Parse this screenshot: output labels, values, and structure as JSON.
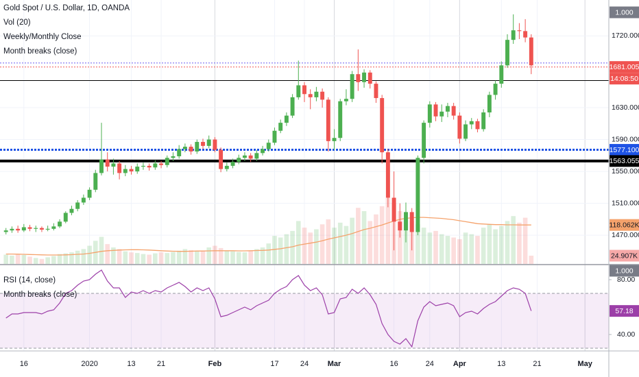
{
  "chart_data": [
    {
      "type": "candlestick",
      "title": "Gold Spot / U.S. Dollar, 1D, OANDA",
      "indicators": [
        "Vol (20)",
        "Weekly/Monthly Close",
        "Month breaks (close)"
      ],
      "categories": [
        null,
        null,
        null,
        "16",
        null,
        null,
        null,
        null,
        null,
        null,
        null,
        null,
        null,
        null,
        "2020",
        null,
        null,
        null,
        null,
        null,
        null,
        "13",
        null,
        null,
        null,
        null,
        "21",
        null,
        null,
        null,
        null,
        null,
        null,
        null,
        null,
        "Feb",
        null,
        null,
        null,
        null,
        null,
        null,
        null,
        null,
        null,
        "17",
        null,
        null,
        null,
        null,
        "24",
        null,
        null,
        null,
        null,
        "Mar",
        null,
        null,
        null,
        null,
        null,
        null,
        null,
        null,
        null,
        "16",
        null,
        null,
        null,
        null,
        null,
        "24",
        null,
        null,
        null,
        null,
        "Apr",
        null,
        null,
        null,
        null,
        null,
        null,
        "13",
        null,
        null,
        null,
        null,
        null,
        "21",
        null,
        null,
        null,
        null,
        null,
        null,
        null,
        "May",
        null,
        null,
        null
      ],
      "open": [
        1474,
        1476,
        1478,
        1476,
        1480,
        1478,
        1479,
        1477,
        1478,
        1481,
        1487,
        1498,
        1503,
        1511,
        1517,
        1527,
        1548,
        1565,
        1556,
        1560,
        1548,
        1553,
        1550,
        1556,
        1557,
        1555,
        1560,
        1558,
        1567,
        1569,
        1578,
        1581,
        1575,
        1587,
        1582,
        1590,
        1577,
        1553,
        1557,
        1562,
        1567,
        1570,
        1566,
        1573,
        1578,
        1586,
        1601,
        1611,
        1620,
        1643,
        1658,
        1647,
        1643,
        1650,
        1640,
        1588,
        1592,
        1638,
        1641,
        1672,
        1662,
        1674,
        1660,
        1642,
        1574,
        1517,
        1487,
        1476,
        1499,
        1474,
        1567,
        1611,
        1634,
        1619,
        1625,
        1632,
        1620,
        1591,
        1609,
        1613,
        1603,
        1624,
        1646,
        1660,
        1683,
        1715,
        1727,
        1726,
        1718,
        null,
        null,
        null,
        null,
        null,
        null,
        null,
        null,
        null,
        null,
        null,
        null
      ],
      "high": [
        1479,
        1481,
        1482,
        1484,
        1483,
        1482,
        1481,
        1482,
        1485,
        1490,
        1500,
        1507,
        1514,
        1521,
        1530,
        1552,
        1611,
        1574,
        1566,
        1563,
        1558,
        1557,
        1560,
        1561,
        1560,
        1564,
        1563,
        1570,
        1574,
        1583,
        1585,
        1584,
        1590,
        1591,
        1595,
        1593,
        1580,
        1561,
        1566,
        1571,
        1574,
        1573,
        1577,
        1582,
        1590,
        1605,
        1615,
        1624,
        1647,
        1689,
        1662,
        1653,
        1656,
        1654,
        1643,
        1603,
        1641,
        1653,
        1676,
        1703,
        1678,
        1677,
        1663,
        1646,
        1578,
        1550,
        1510,
        1511,
        1504,
        1570,
        1614,
        1638,
        1637,
        1634,
        1636,
        1636,
        1624,
        1614,
        1617,
        1616,
        1628,
        1650,
        1664,
        1688,
        1722,
        1747,
        1736,
        1741,
        1722,
        null,
        null,
        null,
        null,
        null,
        null,
        null,
        null,
        null,
        null,
        null,
        null
      ],
      "low": [
        1471,
        1473,
        1473,
        1474,
        1475,
        1474,
        1474,
        1475,
        1476,
        1479,
        1485,
        1495,
        1500,
        1508,
        1514,
        1524,
        1545,
        1550,
        1546,
        1540,
        1544,
        1546,
        1547,
        1552,
        1551,
        1552,
        1554,
        1555,
        1563,
        1566,
        1574,
        1571,
        1572,
        1578,
        1579,
        1574,
        1549,
        1550,
        1554,
        1559,
        1563,
        1562,
        1563,
        1570,
        1575,
        1583,
        1598,
        1607,
        1617,
        1640,
        1637,
        1628,
        1638,
        1630,
        1575,
        1577,
        1588,
        1633,
        1637,
        1651,
        1655,
        1654,
        1636,
        1560,
        1505,
        1451,
        1467,
        1461,
        1451,
        1470,
        1560,
        1605,
        1613,
        1612,
        1618,
        1615,
        1585,
        1588,
        1603,
        1599,
        1600,
        1618,
        1640,
        1655,
        1680,
        1710,
        1716,
        1712,
        1672,
        null,
        null,
        null,
        null,
        null,
        null,
        null,
        null,
        null,
        null,
        null,
        null
      ],
      "close": [
        1476,
        1478,
        1476,
        1480,
        1478,
        1479,
        1477,
        1478,
        1481,
        1487,
        1498,
        1503,
        1511,
        1517,
        1527,
        1548,
        1565,
        1556,
        1560,
        1548,
        1553,
        1550,
        1556,
        1557,
        1555,
        1560,
        1558,
        1567,
        1569,
        1578,
        1581,
        1575,
        1587,
        1582,
        1590,
        1577,
        1553,
        1557,
        1562,
        1567,
        1570,
        1566,
        1573,
        1578,
        1586,
        1601,
        1611,
        1620,
        1643,
        1658,
        1647,
        1643,
        1650,
        1640,
        1588,
        1592,
        1638,
        1641,
        1672,
        1662,
        1674,
        1660,
        1642,
        1574,
        1517,
        1487,
        1476,
        1499,
        1474,
        1567,
        1611,
        1634,
        1619,
        1625,
        1632,
        1620,
        1591,
        1609,
        1613,
        1603,
        1624,
        1646,
        1660,
        1683,
        1715,
        1727,
        1726,
        1718,
        1683,
        null,
        null,
        null,
        null,
        null,
        null,
        null,
        null,
        null,
        null,
        null,
        null
      ],
      "volume": [
        28000,
        25000,
        30000,
        27000,
        22000,
        18000,
        15000,
        20000,
        24000,
        30000,
        32000,
        35000,
        40000,
        45000,
        55000,
        70000,
        82000,
        60000,
        50000,
        45000,
        38000,
        35000,
        33000,
        30000,
        28000,
        32000,
        35000,
        33000,
        36000,
        40000,
        45000,
        42000,
        38000,
        40000,
        50000,
        55000,
        48000,
        40000,
        38000,
        36000,
        35000,
        40000,
        45000,
        50000,
        62000,
        85000,
        80000,
        90000,
        100000,
        130000,
        110000,
        95000,
        105000,
        120000,
        135000,
        110000,
        125000,
        115000,
        140000,
        170000,
        160000,
        130000,
        150000,
        175000,
        200000,
        185000,
        160000,
        140000,
        130000,
        120000,
        110000,
        95000,
        100000,
        90000,
        85000,
        80000,
        75000,
        95000,
        90000,
        85000,
        110000,
        120000,
        105000,
        115000,
        130000,
        145000,
        125000,
        140000,
        24907,
        null,
        null,
        null,
        null,
        null,
        null,
        null,
        null,
        null,
        null,
        null,
        null
      ],
      "volume_ma": [
        30000,
        30000,
        29500,
        29000,
        28500,
        28000,
        27500,
        27000,
        27000,
        27000,
        27500,
        28000,
        29000,
        30000,
        32000,
        35000,
        38000,
        40000,
        41000,
        42000,
        42500,
        43000,
        43000,
        42500,
        42000,
        41000,
        40000,
        39000,
        38500,
        38000,
        38000,
        38500,
        39000,
        39000,
        39500,
        40000,
        40000,
        40000,
        40000,
        39500,
        39500,
        40000,
        40500,
        41000,
        42000,
        44000,
        46000,
        49000,
        52000,
        57000,
        60000,
        63000,
        66000,
        70000,
        75000,
        79000,
        83000,
        87000,
        92000,
        98000,
        104000,
        108000,
        113000,
        118000,
        124000,
        130000,
        135000,
        138000,
        140000,
        141000,
        141000,
        140000,
        139000,
        138000,
        136000,
        134000,
        131000,
        128000,
        125000,
        122000,
        121000,
        120000,
        119000,
        119000,
        118500,
        118500,
        118000,
        118100,
        118062,
        null,
        null,
        null,
        null,
        null,
        null,
        null,
        null,
        null,
        null,
        null,
        null
      ],
      "up_color": "#4caf50",
      "down_color": "#ef5350",
      "ma_color": "#f5a26b",
      "ylim": [
        1434,
        1765
      ],
      "yticks": [
        {
          "value": 1470,
          "label": "1470.000"
        },
        {
          "value": 1510,
          "label": "1510.000"
        },
        {
          "value": 1550,
          "label": "1550.000"
        },
        {
          "value": 1590,
          "label": "1590.000"
        },
        {
          "value": 1630,
          "label": "1630.000"
        },
        {
          "value": 1720,
          "label": "1720.000"
        }
      ],
      "y2lim": [
        0,
        800000
      ],
      "grid": true,
      "scale_label": "1.000",
      "levels": [
        {
          "value": 1686,
          "color": "#6a5cf0",
          "style": "dotted"
        },
        {
          "value": 1664,
          "color": "#000000",
          "style": "solid"
        },
        {
          "value": 1681.005,
          "label": "1681.005",
          "color": "#ef5350",
          "style": "dotted"
        },
        {
          "value": 1577.1,
          "label": "1577.100",
          "color": "#1e53e5",
          "style": "dotted-thick"
        },
        {
          "value": 1563.055,
          "label": "1563.055",
          "color": "#000000",
          "style": "thick"
        }
      ],
      "countdown": "14:08:50",
      "volume_labels": [
        {
          "value": 118062,
          "label": "118.062K",
          "color": "#f5a26b"
        },
        {
          "value": 24907,
          "label": "24.907K",
          "color": "#f7a9a8"
        }
      ]
    },
    {
      "type": "line",
      "title": "RSI (14, close)",
      "indicators": [
        "Month breaks (close)"
      ],
      "values": [
        52,
        55,
        55,
        56,
        56,
        56,
        55,
        57,
        58,
        63,
        70,
        72,
        76,
        79,
        80,
        84,
        87,
        79,
        74,
        74,
        67,
        71,
        70,
        72,
        70,
        72,
        71,
        74,
        76,
        78,
        75,
        71,
        74,
        72,
        74,
        66,
        53,
        54,
        56,
        58,
        60,
        58,
        61,
        63,
        65,
        70,
        73,
        75,
        80,
        83,
        76,
        72,
        74,
        69,
        55,
        56,
        66,
        67,
        73,
        70,
        74,
        69,
        62,
        48,
        40,
        35,
        33,
        37,
        31,
        50,
        60,
        64,
        61,
        62,
        63,
        61,
        53,
        56,
        57,
        55,
        59,
        62,
        64,
        68,
        72,
        74,
        73,
        70,
        57.18,
        null,
        null,
        null,
        null,
        null,
        null,
        null,
        null,
        null,
        null,
        null,
        null
      ],
      "color": "#9c3fa8",
      "ylim": [
        28,
        90.5
      ],
      "yticks": [
        {
          "value": 80,
          "label": "80.00"
        },
        {
          "value": 40,
          "label": "40.00"
        }
      ],
      "band": [
        30,
        70
      ],
      "scale_label": "1.000",
      "last_label": {
        "value": 57.18,
        "label": "57.18"
      }
    }
  ]
}
